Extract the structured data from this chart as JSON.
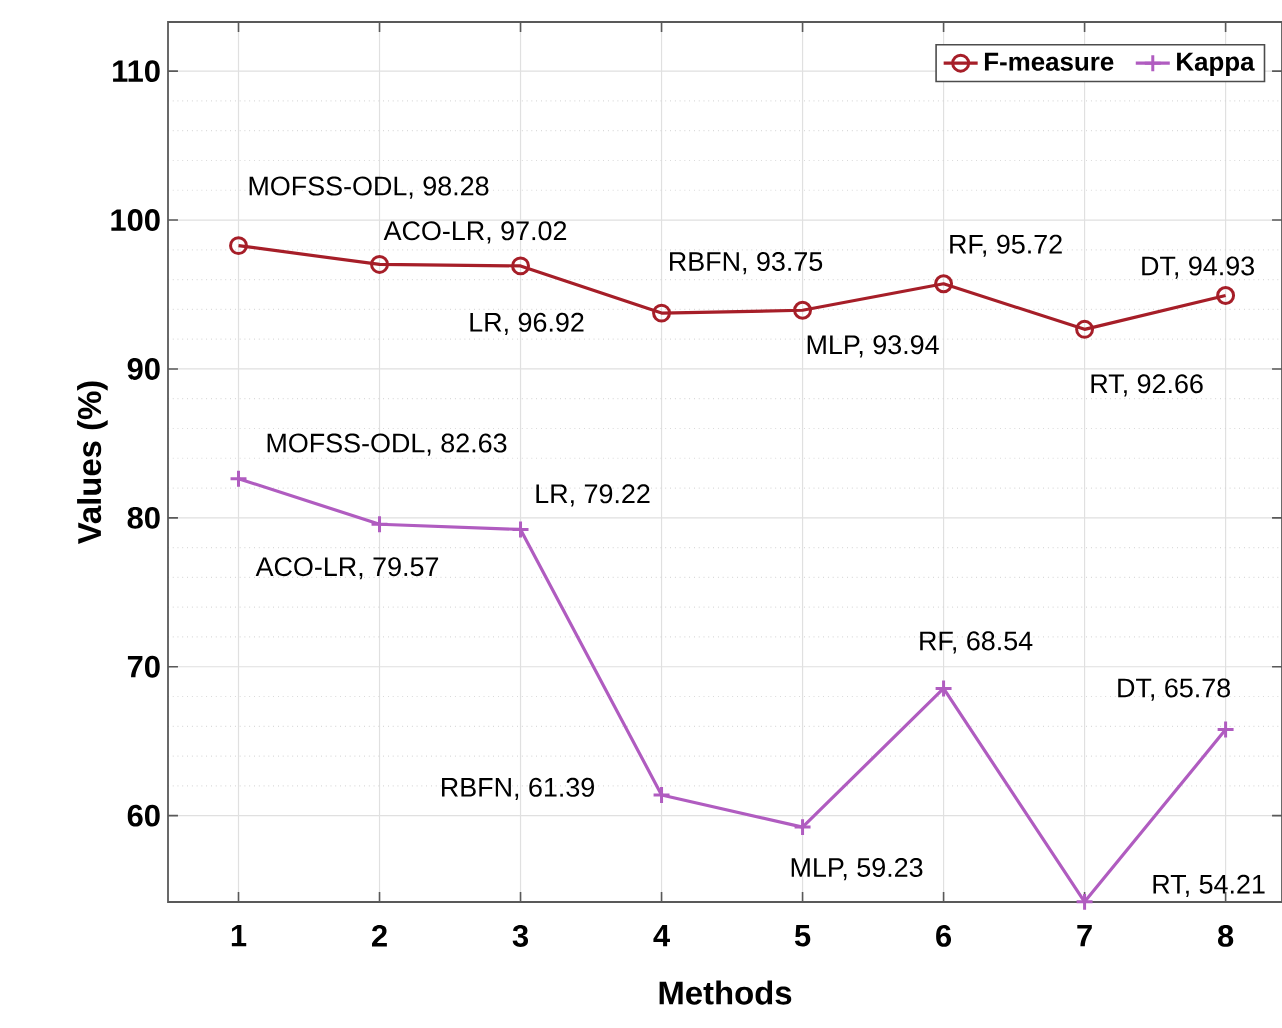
{
  "chart_data": {
    "type": "line",
    "xlabel": "Methods",
    "ylabel": "Values (%)",
    "x": [
      1,
      2,
      3,
      4,
      5,
      6,
      7,
      8
    ],
    "xlim": [
      0.5,
      8.4
    ],
    "xticks": [
      1,
      2,
      3,
      4,
      5,
      6,
      7,
      8
    ],
    "ylim": [
      54.2,
      113.3
    ],
    "yticks": [
      60,
      70,
      80,
      90,
      100,
      110
    ],
    "grid": true,
    "legend": "top right",
    "line_style": "solid",
    "series": [
      {
        "name": "F-measure",
        "color": "#a61e28",
        "marker": "circle",
        "values": [
          98.28,
          97.02,
          96.92,
          93.75,
          93.94,
          95.72,
          92.66,
          94.93
        ]
      },
      {
        "name": "Kappa",
        "color": "#b05cc0",
        "marker": "cross",
        "values": [
          82.63,
          79.57,
          79.22,
          61.39,
          59.23,
          68.54,
          54.21,
          65.78
        ]
      }
    ],
    "annotations": [
      {
        "text": "MOFSS-ODL, 98.28",
        "x": 1,
        "y": 98.28
      },
      {
        "text": "ACO-LR, 97.02",
        "x": 2,
        "y": 97.02
      },
      {
        "text": "LR, 96.92",
        "x": 3,
        "y": 96.92
      },
      {
        "text": "RBFN, 93.75",
        "x": 4,
        "y": 93.75
      },
      {
        "text": "MLP, 93.94",
        "x": 5,
        "y": 93.94
      },
      {
        "text": "RF, 95.72",
        "x": 6,
        "y": 95.72
      },
      {
        "text": "RT, 92.66",
        "x": 7,
        "y": 92.66
      },
      {
        "text": "DT, 94.93",
        "x": 8,
        "y": 94.93
      },
      {
        "text": "MOFSS-ODL, 82.63",
        "x": 1,
        "y": 82.63
      },
      {
        "text": "ACO-LR, 79.57",
        "x": 2,
        "y": 79.57
      },
      {
        "text": "LR, 79.22",
        "x": 3,
        "y": 79.22
      },
      {
        "text": "RBFN, 61.39",
        "x": 4,
        "y": 61.39
      },
      {
        "text": "MLP, 59.23",
        "x": 5,
        "y": 59.23
      },
      {
        "text": "RF, 68.54",
        "x": 6,
        "y": 68.54
      },
      {
        "text": "RT, 54.21",
        "x": 7,
        "y": 54.21
      },
      {
        "text": "DT, 65.78",
        "x": 8,
        "y": 65.78
      }
    ]
  }
}
